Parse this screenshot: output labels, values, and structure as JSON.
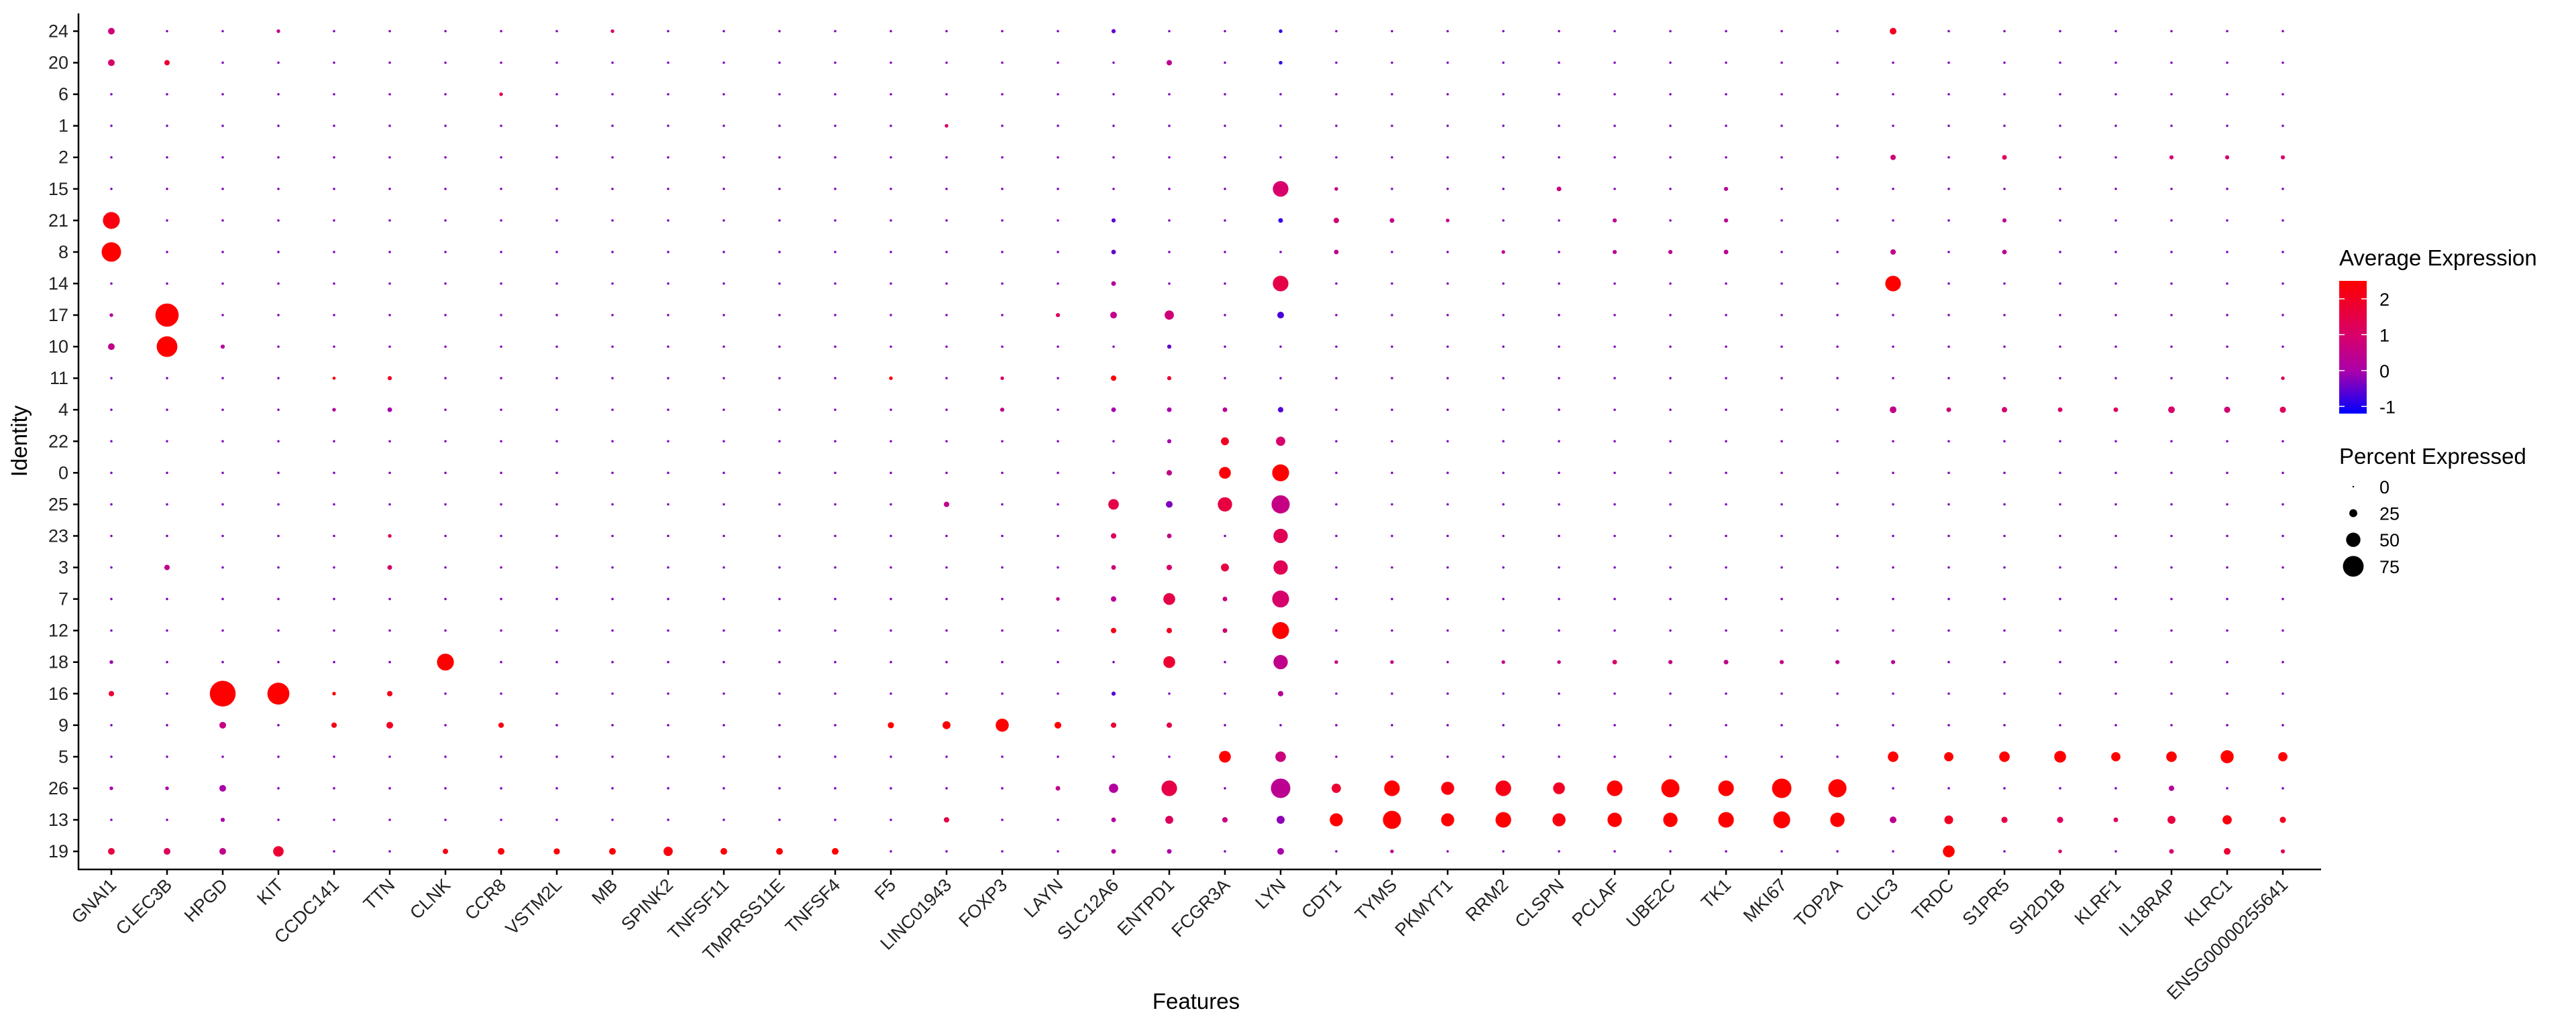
{
  "chart_data": {
    "type": "dotplot",
    "xlabel": "Features",
    "ylabel": "Identity",
    "features": [
      "GNAI1",
      "CLEC3B",
      "HPGD",
      "KIT",
      "CCDC141",
      "TTN",
      "CLNK",
      "CCR8",
      "VSTM2L",
      "MB",
      "SPINK2",
      "TNFSF11",
      "TMPRSS11E",
      "TNFSF4",
      "F5",
      "LINC01943",
      "FOXP3",
      "LAYN",
      "SLC12A6",
      "ENTPD1",
      "FCGR3A",
      "LYN",
      "CDT1",
      "TYMS",
      "PKMYT1",
      "RRM2",
      "CLSPN",
      "PCLAF",
      "UBE2C",
      "TK1",
      "MKI67",
      "TOP2A",
      "CLIC3",
      "TRDC",
      "S1PR5",
      "SH2D1B",
      "KLRF1",
      "IL18RAP",
      "KLRC1",
      "ENSG00000255641"
    ],
    "identities": [
      "24",
      "20",
      "6",
      "1",
      "2",
      "15",
      "21",
      "8",
      "14",
      "17",
      "10",
      "11",
      "4",
      "22",
      "0",
      "25",
      "23",
      "3",
      "7",
      "12",
      "18",
      "16",
      "9",
      "5",
      "26",
      "13",
      "19"
    ],
    "default_point": {
      "pct": 3,
      "avg": -0.3
    },
    "points": [
      [
        "GNAI1",
        "24",
        20,
        0.8
      ],
      [
        "GNAI1",
        "20",
        20,
        1.0
      ],
      [
        "GNAI1",
        "21",
        60,
        2.3
      ],
      [
        "GNAI1",
        "8",
        70,
        2.5
      ],
      [
        "GNAI1",
        "17",
        8,
        0.2
      ],
      [
        "GNAI1",
        "10",
        20,
        0.5
      ],
      [
        "GNAI1",
        "16",
        15,
        1.8
      ],
      [
        "GNAI1",
        "26",
        8,
        0.0
      ],
      [
        "GNAI1",
        "19",
        20,
        1.6
      ],
      [
        "GNAI1",
        "18",
        8,
        -0.1
      ],
      [
        "CLEC3B",
        "20",
        15,
        1.8
      ],
      [
        "CLEC3B",
        "17",
        85,
        2.5
      ],
      [
        "CLEC3B",
        "10",
        75,
        2.5
      ],
      [
        "CLEC3B",
        "3",
        15,
        0.5
      ],
      [
        "CLEC3B",
        "19",
        20,
        1.2
      ],
      [
        "CLEC3B",
        "26",
        8,
        0.0
      ],
      [
        "HPGD",
        "16",
        95,
        2.5
      ],
      [
        "HPGD",
        "9",
        20,
        0.6
      ],
      [
        "HPGD",
        "26",
        20,
        0.0
      ],
      [
        "HPGD",
        "13",
        10,
        0.0
      ],
      [
        "HPGD",
        "19",
        20,
        0.5
      ],
      [
        "HPGD",
        "10",
        10,
        0.3
      ],
      [
        "KIT",
        "16",
        80,
        2.5
      ],
      [
        "KIT",
        "19",
        35,
        1.8
      ],
      [
        "KIT",
        "24",
        8,
        0.5
      ],
      [
        "CCDC141",
        "11",
        6,
        2.3
      ],
      [
        "CCDC141",
        "16",
        8,
        2.5
      ],
      [
        "CCDC141",
        "9",
        15,
        2.2
      ],
      [
        "CCDC141",
        "4",
        8,
        0.2
      ],
      [
        "TTN",
        "11",
        10,
        2.0
      ],
      [
        "TTN",
        "4",
        12,
        0.0
      ],
      [
        "TTN",
        "16",
        15,
        2.1
      ],
      [
        "TTN",
        "9",
        20,
        2.0
      ],
      [
        "TTN",
        "3",
        12,
        1.0
      ],
      [
        "TTN",
        "23",
        8,
        1.2
      ],
      [
        "CLNK",
        "18",
        60,
        2.5
      ],
      [
        "CLNK",
        "19",
        15,
        2.2
      ],
      [
        "CCR8",
        "6",
        8,
        1.5
      ],
      [
        "CCR8",
        "9",
        15,
        2.3
      ],
      [
        "CCR8",
        "19",
        20,
        2.3
      ],
      [
        "VSTM2L",
        "19",
        18,
        2.4
      ],
      [
        "MB",
        "19",
        20,
        2.4
      ],
      [
        "MB",
        "24",
        8,
        1.0
      ],
      [
        "SPINK2",
        "19",
        30,
        2.3
      ],
      [
        "TNFSF11",
        "19",
        20,
        2.4
      ],
      [
        "TMPRSS11E",
        "19",
        20,
        2.4
      ],
      [
        "TNFSF4",
        "19",
        20,
        2.5
      ],
      [
        "F5",
        "11",
        8,
        2.5
      ],
      [
        "F5",
        "9",
        18,
        2.5
      ],
      [
        "LINC01943",
        "9",
        25,
        2.4
      ],
      [
        "LINC01943",
        "25",
        15,
        0.5
      ],
      [
        "LINC01943",
        "13",
        15,
        1.5
      ],
      [
        "LINC01943",
        "1",
        8,
        1.0
      ],
      [
        "FOXP3",
        "9",
        45,
        2.5
      ],
      [
        "FOXP3",
        "11",
        8,
        1.0
      ],
      [
        "FOXP3",
        "4",
        10,
        0.5
      ],
      [
        "LAYN",
        "9",
        20,
        2.5
      ],
      [
        "LAYN",
        "17",
        10,
        1.2
      ],
      [
        "LAYN",
        "26",
        12,
        0.5
      ],
      [
        "LAYN",
        "7",
        8,
        0.5
      ],
      [
        "SLC12A6",
        "24",
        10,
        -0.5
      ],
      [
        "SLC12A6",
        "21",
        10,
        -0.6
      ],
      [
        "SLC12A6",
        "8",
        12,
        -0.5
      ],
      [
        "SLC12A6",
        "14",
        12,
        0.3
      ],
      [
        "SLC12A6",
        "17",
        20,
        0.5
      ],
      [
        "SLC12A6",
        "11",
        15,
        2.4
      ],
      [
        "SLC12A6",
        "4",
        12,
        0.0
      ],
      [
        "SLC12A6",
        "25",
        35,
        1.5
      ],
      [
        "SLC12A6",
        "23",
        15,
        1.2
      ],
      [
        "SLC12A6",
        "3",
        12,
        0.8
      ],
      [
        "SLC12A6",
        "7",
        15,
        0.3
      ],
      [
        "SLC12A6",
        "12",
        15,
        2.2
      ],
      [
        "SLC12A6",
        "16",
        10,
        -0.6
      ],
      [
        "SLC12A6",
        "9",
        15,
        1.8
      ],
      [
        "SLC12A6",
        "26",
        30,
        0.2
      ],
      [
        "SLC12A6",
        "13",
        12,
        0.2
      ],
      [
        "SLC12A6",
        "19",
        12,
        0.3
      ],
      [
        "ENTPD1",
        "20",
        15,
        0.4
      ],
      [
        "ENTPD1",
        "17",
        30,
        0.8
      ],
      [
        "ENTPD1",
        "10",
        10,
        -0.5
      ],
      [
        "ENTPD1",
        "11",
        10,
        1.8
      ],
      [
        "ENTPD1",
        "4",
        12,
        0.0
      ],
      [
        "ENTPD1",
        "22",
        10,
        0.0
      ],
      [
        "ENTPD1",
        "0",
        15,
        0.5
      ],
      [
        "ENTPD1",
        "25",
        20,
        -0.3
      ],
      [
        "ENTPD1",
        "23",
        12,
        0.5
      ],
      [
        "ENTPD1",
        "3",
        15,
        1.0
      ],
      [
        "ENTPD1",
        "7",
        40,
        1.5
      ],
      [
        "ENTPD1",
        "12",
        15,
        2.0
      ],
      [
        "ENTPD1",
        "18",
        40,
        1.8
      ],
      [
        "ENTPD1",
        "9",
        15,
        1.5
      ],
      [
        "ENTPD1",
        "26",
        55,
        1.5
      ],
      [
        "ENTPD1",
        "13",
        25,
        1.2
      ],
      [
        "ENTPD1",
        "19",
        12,
        0.0
      ],
      [
        "FCGR3A",
        "22",
        25,
        2.0
      ],
      [
        "FCGR3A",
        "0",
        40,
        2.4
      ],
      [
        "FCGR3A",
        "25",
        50,
        1.6
      ],
      [
        "FCGR3A",
        "3",
        25,
        1.6
      ],
      [
        "FCGR3A",
        "7",
        12,
        0.7
      ],
      [
        "FCGR3A",
        "12",
        12,
        0.9
      ],
      [
        "FCGR3A",
        "5",
        40,
        2.5
      ],
      [
        "FCGR3A",
        "13",
        15,
        0.6
      ],
      [
        "FCGR3A",
        "4",
        12,
        0.3
      ],
      [
        "LYN",
        "24",
        8,
        -0.8
      ],
      [
        "LYN",
        "20",
        8,
        -0.8
      ],
      [
        "LYN",
        "15",
        55,
        1.0
      ],
      [
        "LYN",
        "21",
        12,
        -0.8
      ],
      [
        "LYN",
        "14",
        55,
        1.5
      ],
      [
        "LYN",
        "17",
        20,
        -0.7
      ],
      [
        "LYN",
        "4",
        15,
        -0.6
      ],
      [
        "LYN",
        "22",
        30,
        1.0
      ],
      [
        "LYN",
        "0",
        60,
        2.5
      ],
      [
        "LYN",
        "25",
        65,
        0.6
      ],
      [
        "LYN",
        "23",
        50,
        1.3
      ],
      [
        "LYN",
        "3",
        50,
        1.3
      ],
      [
        "LYN",
        "7",
        60,
        1.0
      ],
      [
        "LYN",
        "12",
        60,
        2.5
      ],
      [
        "LYN",
        "18",
        50,
        0.5
      ],
      [
        "LYN",
        "16",
        15,
        0.3
      ],
      [
        "LYN",
        "5",
        35,
        0.7
      ],
      [
        "LYN",
        "26",
        70,
        0.4
      ],
      [
        "LYN",
        "13",
        25,
        -0.2
      ],
      [
        "LYN",
        "19",
        20,
        0.0
      ],
      [
        "CDT1",
        "21",
        15,
        0.8
      ],
      [
        "CDT1",
        "8",
        12,
        0.5
      ],
      [
        "CDT1",
        "15",
        8,
        0.5
      ],
      [
        "CDT1",
        "26",
        30,
        1.8
      ],
      [
        "CDT1",
        "13",
        45,
        2.5
      ],
      [
        "CDT1",
        "18",
        8,
        0.6
      ],
      [
        "TYMS",
        "21",
        12,
        0.5
      ],
      [
        "TYMS",
        "26",
        55,
        2.5
      ],
      [
        "TYMS",
        "13",
        65,
        2.5
      ],
      [
        "TYMS",
        "19",
        8,
        0.5
      ],
      [
        "TYMS",
        "18",
        8,
        0.6
      ],
      [
        "PKMYT1",
        "21",
        8,
        0.5
      ],
      [
        "PKMYT1",
        "26",
        45,
        2.3
      ],
      [
        "PKMYT1",
        "13",
        45,
        2.5
      ],
      [
        "RRM2",
        "8",
        8,
        0.5
      ],
      [
        "RRM2",
        "26",
        55,
        2.2
      ],
      [
        "RRM2",
        "13",
        55,
        2.5
      ],
      [
        "RRM2",
        "18",
        8,
        0.6
      ],
      [
        "CLSPN",
        "15",
        12,
        0.7
      ],
      [
        "CLSPN",
        "26",
        40,
        2.0
      ],
      [
        "CLSPN",
        "13",
        45,
        2.3
      ],
      [
        "CLSPN",
        "18",
        8,
        0.6
      ],
      [
        "PCLAF",
        "21",
        10,
        0.4
      ],
      [
        "PCLAF",
        "8",
        10,
        0.4
      ],
      [
        "PCLAF",
        "26",
        55,
        2.5
      ],
      [
        "PCLAF",
        "13",
        50,
        2.5
      ],
      [
        "PCLAF",
        "18",
        12,
        1.0
      ],
      [
        "UBE2C",
        "26",
        65,
        2.5
      ],
      [
        "UBE2C",
        "13",
        50,
        2.5
      ],
      [
        "UBE2C",
        "18",
        10,
        0.6
      ],
      [
        "UBE2C",
        "8",
        10,
        0.4
      ],
      [
        "TK1",
        "26",
        55,
        2.5
      ],
      [
        "TK1",
        "13",
        55,
        2.5
      ],
      [
        "TK1",
        "18",
        12,
        0.5
      ],
      [
        "TK1",
        "8",
        12,
        0.4
      ],
      [
        "TK1",
        "21",
        10,
        0.4
      ],
      [
        "TK1",
        "15",
        10,
        0.4
      ],
      [
        "MKI67",
        "26",
        70,
        2.5
      ],
      [
        "MKI67",
        "13",
        60,
        2.5
      ],
      [
        "MKI67",
        "18",
        10,
        0.6
      ],
      [
        "TOP2A",
        "26",
        65,
        2.5
      ],
      [
        "TOP2A",
        "13",
        50,
        2.5
      ],
      [
        "TOP2A",
        "18",
        10,
        0.4
      ],
      [
        "CLIC3",
        "24",
        20,
        2.0
      ],
      [
        "CLIC3",
        "14",
        55,
        2.5
      ],
      [
        "CLIC3",
        "2",
        15,
        0.8
      ],
      [
        "CLIC3",
        "8",
        15,
        0.5
      ],
      [
        "CLIC3",
        "4",
        20,
        0.5
      ],
      [
        "CLIC3",
        "5",
        35,
        2.5
      ],
      [
        "CLIC3",
        "13",
        20,
        0.4
      ],
      [
        "CLIC3",
        "18",
        10,
        0.3
      ],
      [
        "TRDC",
        "4",
        12,
        0.8
      ],
      [
        "TRDC",
        "5",
        30,
        2.5
      ],
      [
        "TRDC",
        "13",
        28,
        2.0
      ],
      [
        "TRDC",
        "19",
        40,
        2.5
      ],
      [
        "S1PR5",
        "2",
        12,
        1.2
      ],
      [
        "S1PR5",
        "8",
        12,
        0.5
      ],
      [
        "S1PR5",
        "21",
        10,
        0.5
      ],
      [
        "S1PR5",
        "4",
        15,
        0.9
      ],
      [
        "S1PR5",
        "5",
        35,
        2.5
      ],
      [
        "S1PR5",
        "13",
        18,
        1.5
      ],
      [
        "SH2D1B",
        "4",
        12,
        1.0
      ],
      [
        "SH2D1B",
        "5",
        40,
        2.5
      ],
      [
        "SH2D1B",
        "13",
        18,
        1.2
      ],
      [
        "SH2D1B",
        "19",
        8,
        1.0
      ],
      [
        "KLRF1",
        "4",
        12,
        1.2
      ],
      [
        "KLRF1",
        "5",
        30,
        2.5
      ],
      [
        "KLRF1",
        "13",
        12,
        1.2
      ],
      [
        "IL18RAP",
        "2",
        10,
        0.9
      ],
      [
        "IL18RAP",
        "4",
        20,
        1.0
      ],
      [
        "IL18RAP",
        "5",
        35,
        2.5
      ],
      [
        "IL18RAP",
        "26",
        15,
        0.3
      ],
      [
        "IL18RAP",
        "13",
        25,
        1.6
      ],
      [
        "IL18RAP",
        "19",
        12,
        1.0
      ],
      [
        "KLRC1",
        "2",
        10,
        0.8
      ],
      [
        "KLRC1",
        "4",
        18,
        0.9
      ],
      [
        "KLRC1",
        "5",
        45,
        2.5
      ],
      [
        "KLRC1",
        "13",
        30,
        2.3
      ],
      [
        "KLRC1",
        "19",
        20,
        1.8
      ],
      [
        "ENSG00000255641",
        "2",
        10,
        1.0
      ],
      [
        "ENSG00000255641",
        "11",
        8,
        1.2
      ],
      [
        "ENSG00000255641",
        "4",
        18,
        1.2
      ],
      [
        "ENSG00000255641",
        "5",
        30,
        2.5
      ],
      [
        "ENSG00000255641",
        "13",
        18,
        2.0
      ],
      [
        "ENSG00000255641",
        "19",
        10,
        1.2
      ]
    ],
    "color_legend": {
      "title": "Average Expression",
      "ticks": [
        "2",
        "1",
        "0",
        "-1"
      ],
      "tick_values": [
        2,
        1,
        0,
        -1
      ],
      "range": [
        -1.2,
        2.5
      ],
      "low_color": "#0000FF",
      "mid_color": "#AA00AA",
      "high_color": "#FF0000"
    },
    "size_legend": {
      "title": "Percent Expressed",
      "labels": [
        "0",
        "25",
        "50",
        "75"
      ],
      "values": [
        0,
        25,
        50,
        75
      ]
    }
  }
}
